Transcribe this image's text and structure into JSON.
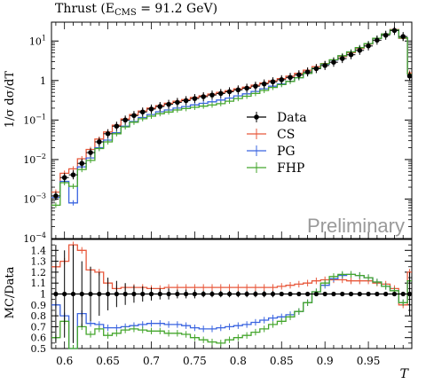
{
  "chart_data": [
    {
      "panel": "main",
      "type": "line",
      "title": "Thrust (E",
      "title_sub": "CMS",
      "title_tail": " = 91.2 GeV)",
      "ylabel": "1/σ dσ/dT",
      "xlim": [
        0.585,
        1.0
      ],
      "ylim_log": [
        0.0001,
        30
      ],
      "log_y": true,
      "y_ticks": [
        {
          "v": 10,
          "label": "10",
          "exp": "1"
        },
        {
          "v": 1,
          "label": "1",
          "exp": ""
        },
        {
          "v": 0.1,
          "label": "10",
          "exp": "−1"
        },
        {
          "v": 0.01,
          "label": "10",
          "exp": "−2"
        },
        {
          "v": 0.001,
          "label": "10",
          "exp": "−3"
        },
        {
          "v": 0.0001,
          "label": "10",
          "exp": "−4"
        }
      ],
      "watermark": "Preliminary",
      "legend": {
        "placement": "center-right",
        "entries": [
          {
            "name": "Data",
            "color": "#000000",
            "style": "points"
          },
          {
            "name": "CS",
            "color": "#e8593c",
            "style": "hist"
          },
          {
            "name": "PG",
            "color": "#3a64e0",
            "style": "hist"
          },
          {
            "name": "FHP",
            "color": "#45a62d",
            "style": "hist"
          }
        ]
      },
      "bin_edges": [
        0.585,
        0.595,
        0.605,
        0.615,
        0.625,
        0.635,
        0.645,
        0.655,
        0.665,
        0.675,
        0.685,
        0.695,
        0.705,
        0.715,
        0.725,
        0.735,
        0.745,
        0.755,
        0.765,
        0.775,
        0.785,
        0.795,
        0.805,
        0.815,
        0.825,
        0.835,
        0.845,
        0.855,
        0.865,
        0.875,
        0.885,
        0.895,
        0.905,
        0.915,
        0.925,
        0.935,
        0.945,
        0.955,
        0.965,
        0.975,
        0.985,
        0.995,
        1.0
      ],
      "series": [
        {
          "name": "Data",
          "color": "#000000",
          "values": [
            0.0012,
            0.0035,
            0.0041,
            0.008,
            0.015,
            0.028,
            0.045,
            0.07,
            0.1,
            0.13,
            0.16,
            0.19,
            0.22,
            0.25,
            0.28,
            0.31,
            0.35,
            0.39,
            0.43,
            0.47,
            0.52,
            0.58,
            0.64,
            0.72,
            0.82,
            0.93,
            1.05,
            1.2,
            1.4,
            1.65,
            2.0,
            2.4,
            2.9,
            3.6,
            4.5,
            5.8,
            7.5,
            10.5,
            14.0,
            18.5,
            13.0,
            1.3
          ]
        },
        {
          "name": "CS",
          "color": "#e8593c",
          "values": [
            0.0015,
            0.0045,
            0.0058,
            0.0105,
            0.018,
            0.033,
            0.05,
            0.074,
            0.106,
            0.138,
            0.17,
            0.2,
            0.232,
            0.266,
            0.298,
            0.33,
            0.372,
            0.412,
            0.456,
            0.5,
            0.552,
            0.615,
            0.68,
            0.766,
            0.87,
            0.99,
            1.12,
            1.29,
            1.52,
            1.82,
            2.24,
            2.7,
            3.27,
            4.05,
            5.06,
            6.5,
            8.4,
            11.6,
            15.2,
            19.5,
            11.7,
            1.55
          ]
        },
        {
          "name": "PG",
          "color": "#3a64e0",
          "values": [
            0.0011,
            0.0028,
            0.0008,
            0.0065,
            0.011,
            0.02,
            0.031,
            0.048,
            0.07,
            0.092,
            0.116,
            0.138,
            0.162,
            0.18,
            0.2,
            0.22,
            0.242,
            0.265,
            0.29,
            0.32,
            0.36,
            0.41,
            0.46,
            0.53,
            0.62,
            0.72,
            0.82,
            0.96,
            1.18,
            1.52,
            2.04,
            2.6,
            3.3,
            4.2,
            5.3,
            6.8,
            8.6,
            11.7,
            15.0,
            19.0,
            12.0,
            1.45
          ]
        },
        {
          "name": "FHP",
          "color": "#45a62d",
          "values": [
            0.0007,
            0.0026,
            0.0021,
            0.0056,
            0.0095,
            0.019,
            0.028,
            0.045,
            0.067,
            0.088,
            0.108,
            0.125,
            0.145,
            0.16,
            0.18,
            0.195,
            0.21,
            0.225,
            0.24,
            0.26,
            0.3,
            0.35,
            0.4,
            0.47,
            0.56,
            0.67,
            0.79,
            0.95,
            1.18,
            1.52,
            2.04,
            2.65,
            3.35,
            4.25,
            5.3,
            6.8,
            8.6,
            11.7,
            15.0,
            19.0,
            12.0,
            1.45
          ]
        }
      ]
    },
    {
      "panel": "ratio",
      "type": "line",
      "ylabel": "MC/Data",
      "xlabel": "T",
      "xlim": [
        0.585,
        1.0
      ],
      "ylim": [
        0.5,
        1.5
      ],
      "x_ticks": [
        0.6,
        0.65,
        0.7,
        0.75,
        0.8,
        0.85,
        0.9,
        0.95
      ],
      "x_tick_labels": [
        "0.6",
        "0.65",
        "0.7",
        "0.75",
        "0.8",
        "0.85",
        "0.9",
        "0.95"
      ],
      "y_ticks": [
        0.5,
        0.6,
        0.7,
        0.8,
        0.9,
        1.0,
        1.1,
        1.2,
        1.3,
        1.4
      ],
      "y_tick_labels": [
        "0.5",
        "0.6",
        "0.7",
        "0.8",
        "0.9",
        "1",
        "1.1",
        "1.2",
        "1.3",
        "1.4"
      ],
      "bin_edges": [
        0.585,
        0.595,
        0.605,
        0.615,
        0.625,
        0.635,
        0.645,
        0.655,
        0.665,
        0.675,
        0.685,
        0.695,
        0.705,
        0.715,
        0.725,
        0.735,
        0.745,
        0.755,
        0.765,
        0.775,
        0.785,
        0.795,
        0.805,
        0.815,
        0.825,
        0.835,
        0.845,
        0.855,
        0.865,
        0.875,
        0.885,
        0.895,
        0.905,
        0.915,
        0.925,
        0.935,
        0.945,
        0.955,
        0.965,
        0.975,
        0.985,
        0.995,
        1.0
      ],
      "data_errors": [
        0.45,
        0.4,
        0.45,
        0.3,
        0.25,
        0.2,
        0.15,
        0.12,
        0.1,
        0.08,
        0.07,
        0.06,
        0.05,
        0.05,
        0.04,
        0.04,
        0.04,
        0.03,
        0.03,
        0.03,
        0.03,
        0.03,
        0.03,
        0.03,
        0.03,
        0.03,
        0.02,
        0.02,
        0.02,
        0.02,
        0.02,
        0.02,
        0.02,
        0.02,
        0.02,
        0.02,
        0.02,
        0.02,
        0.02,
        0.02,
        0.02,
        0.2
      ],
      "series": [
        {
          "name": "CS",
          "color": "#e8593c",
          "values": [
            1.25,
            1.3,
            1.45,
            1.4,
            1.22,
            1.2,
            1.1,
            1.05,
            1.06,
            1.06,
            1.06,
            1.05,
            1.05,
            1.06,
            1.06,
            1.06,
            1.06,
            1.06,
            1.06,
            1.06,
            1.06,
            1.06,
            1.06,
            1.06,
            1.06,
            1.06,
            1.07,
            1.08,
            1.09,
            1.1,
            1.12,
            1.13,
            1.13,
            1.13,
            1.12,
            1.12,
            1.12,
            1.1,
            1.09,
            1.05,
            0.9,
            1.2
          ]
        },
        {
          "name": "PG",
          "color": "#3a64e0",
          "values": [
            0.9,
            0.8,
            0.2,
            0.82,
            0.73,
            0.72,
            0.69,
            0.69,
            0.7,
            0.71,
            0.72,
            0.73,
            0.73,
            0.72,
            0.72,
            0.71,
            0.69,
            0.68,
            0.68,
            0.69,
            0.7,
            0.71,
            0.72,
            0.74,
            0.76,
            0.78,
            0.79,
            0.81,
            0.84,
            0.92,
            1.02,
            1.08,
            1.14,
            1.17,
            1.18,
            1.17,
            1.15,
            1.11,
            1.07,
            1.03,
            0.92,
            1.12
          ]
        },
        {
          "name": "FHP",
          "color": "#45a62d",
          "values": [
            0.6,
            0.75,
            0.5,
            0.7,
            0.63,
            0.68,
            0.62,
            0.64,
            0.67,
            0.68,
            0.67,
            0.66,
            0.66,
            0.64,
            0.64,
            0.63,
            0.6,
            0.58,
            0.56,
            0.55,
            0.58,
            0.6,
            0.62,
            0.65,
            0.68,
            0.72,
            0.75,
            0.79,
            0.84,
            0.92,
            1.02,
            1.1,
            1.16,
            1.18,
            1.18,
            1.17,
            1.15,
            1.11,
            1.07,
            1.03,
            0.92,
            1.12
          ]
        }
      ]
    }
  ]
}
